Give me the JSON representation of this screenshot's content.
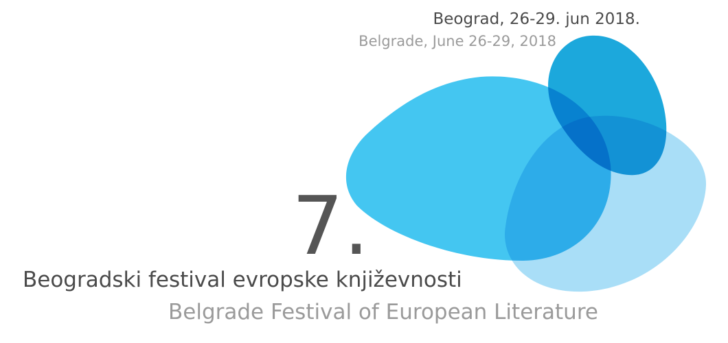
{
  "date_local": "Beograd, 26-29. jun 2018.",
  "date_english": "Belgrade, June 26-29, 2018",
  "edition": "7.",
  "title_local": "Beogradski festival evropske književnosti",
  "title_english": "Belgrade Festival of European Literature"
}
